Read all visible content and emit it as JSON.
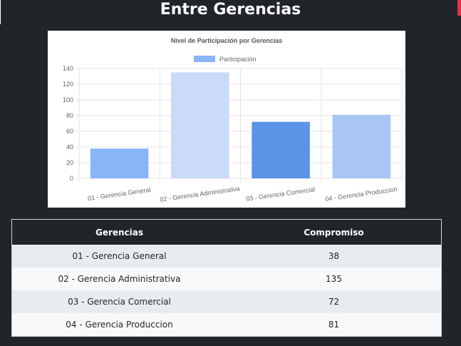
{
  "page": {
    "heading": "Entre Gerencias"
  },
  "colors": {
    "background": "#212529",
    "accent": "#dc3545"
  },
  "chart_data": {
    "type": "bar",
    "title": "Nivel de Participación por Gerencias",
    "legend": {
      "label": "Participación",
      "color": "#8ab4f8",
      "placement": "top"
    },
    "categories": [
      "01 - Gerencia General",
      "02 - Gerencia Administrativa",
      "03 - Gerencia Comercial",
      "04 - Gerencia Produccion"
    ],
    "series": [
      {
        "name": "Participación",
        "values": [
          38,
          135,
          72,
          81
        ]
      }
    ],
    "bar_colors": [
      "#8ab4f8",
      "#c9dbf8",
      "#5b93e6",
      "#a9c5f2"
    ],
    "ylim": [
      0,
      140
    ],
    "yticks": [
      0,
      20,
      40,
      60,
      80,
      100,
      120,
      140
    ],
    "grid": true,
    "xlabel": "",
    "ylabel": ""
  },
  "table": {
    "headers": [
      "Gerencias",
      "Compromiso"
    ],
    "rows": [
      [
        "01 - Gerencia General",
        "38"
      ],
      [
        "02 - Gerencia Administrativa",
        "135"
      ],
      [
        "03 - Gerencia Comercial",
        "72"
      ],
      [
        "04 - Gerencia Produccion",
        "81"
      ]
    ]
  }
}
